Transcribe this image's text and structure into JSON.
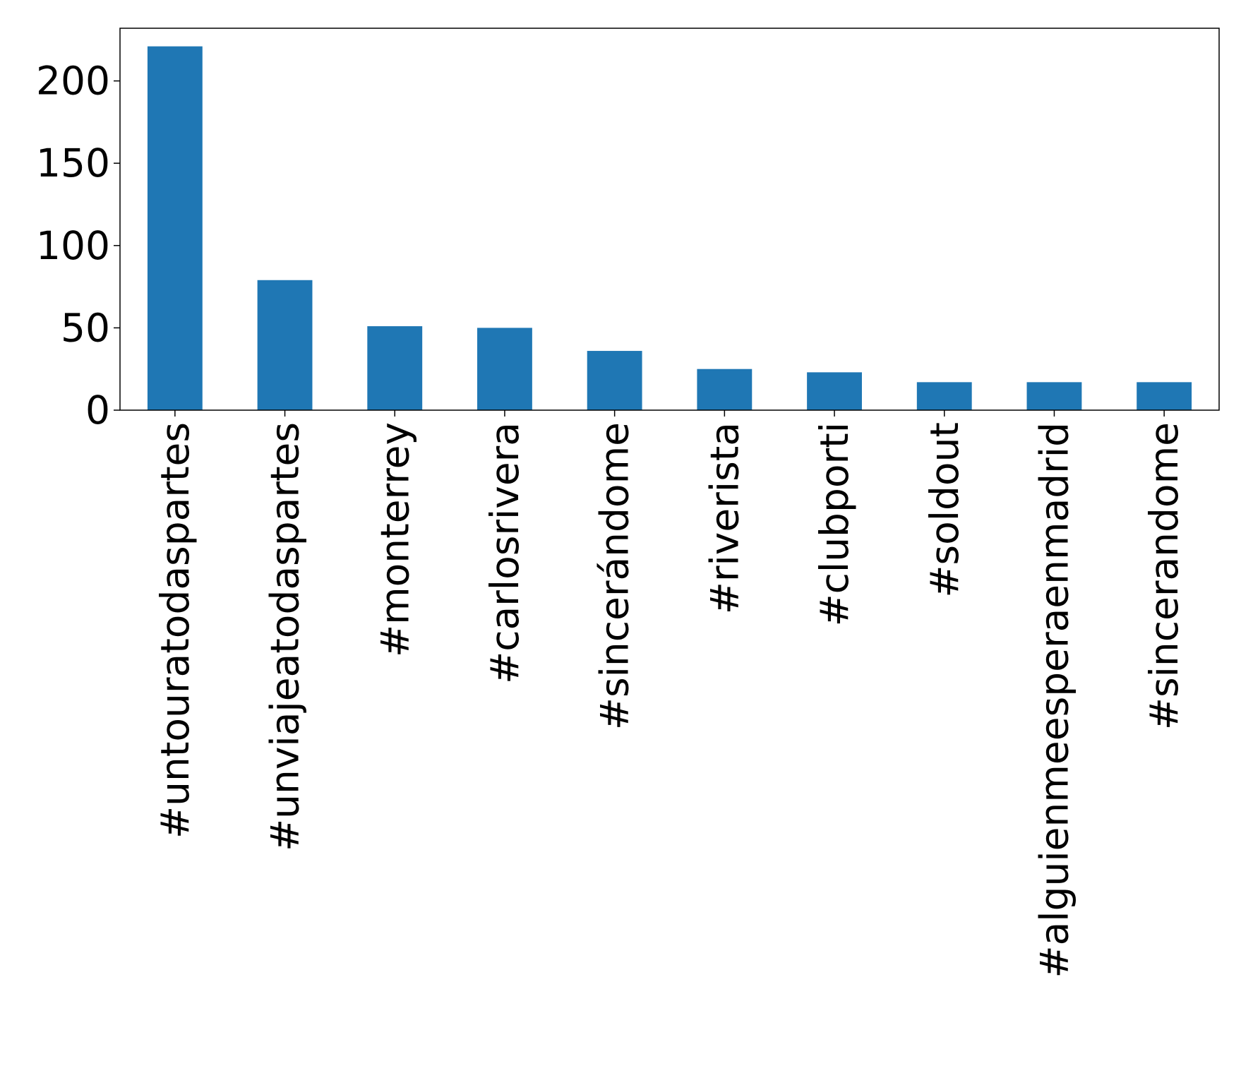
{
  "chart_data": {
    "type": "bar",
    "title": "",
    "xlabel": "",
    "ylabel": "",
    "categories": [
      "#untouratodaspartes",
      "#unviajeatodaspartes",
      "#monterrey",
      "#carlosrivera",
      "#sincerándome",
      "#riverista",
      "#clubporti",
      "#soldout",
      "#alguienmeesperaenmadrid",
      "#sincerandome"
    ],
    "values": [
      221,
      79,
      51,
      50,
      36,
      25,
      23,
      17,
      17,
      17
    ],
    "ylim": [
      0,
      232
    ],
    "yticks": [
      0,
      50,
      100,
      150,
      200
    ],
    "grid": false,
    "bar_color": "#1f77b4"
  }
}
